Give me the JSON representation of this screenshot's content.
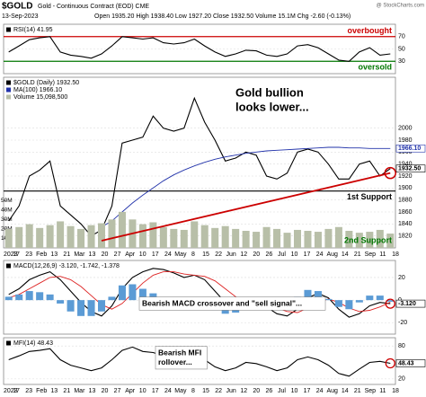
{
  "header": {
    "symbol": "$GOLD",
    "name": "Gold - Continuous Contract (EOD) CME",
    "date": "13-Sep-2023",
    "quote": "Open 1935.20  High 1938.40  Low 1927.20  Close 1932.50  Volume 15.1M  Chg -2.60 (-0.13%)",
    "credit": "@ StockCharts.com"
  },
  "x_labels": [
    "2023",
    "17",
    "23",
    "Feb",
    "13",
    "21",
    "Mar",
    "13",
    "20",
    "27",
    "Apr",
    "10",
    "17",
    "24",
    "May",
    "8",
    "15",
    "22",
    "Jun",
    "12",
    "20",
    "26",
    "Jul",
    "10",
    "17",
    "24",
    "Aug",
    "14",
    "21",
    "Sep",
    "11",
    "18"
  ],
  "chart_data": [
    {
      "type": "line",
      "series": [
        {
          "name": "RSI(14) 41.95",
          "color": "#000000",
          "values": [
            45,
            55,
            65,
            68,
            70,
            45,
            40,
            38,
            35,
            42,
            55,
            70,
            68,
            66,
            68,
            60,
            58,
            60,
            66,
            55,
            45,
            38,
            42,
            48,
            47,
            40,
            38,
            42,
            55,
            57,
            52,
            42,
            32,
            30,
            45,
            52,
            40,
            41.95
          ]
        }
      ],
      "ylim": [
        10,
        90
      ],
      "yticks": [
        30,
        50,
        70
      ],
      "grid": true,
      "levels": [
        {
          "value": 70,
          "label": "overbought",
          "color": "#cc0000"
        },
        {
          "value": 30,
          "label": "oversold",
          "color": "#007700"
        }
      ]
    },
    {
      "type": "line",
      "series": [
        {
          "name": "$GOLD (Daily) 1932.50",
          "color": "#000000",
          "values": [
            1845,
            1870,
            1920,
            1930,
            1945,
            1870,
            1855,
            1840,
            1820,
            1830,
            1870,
            1975,
            1980,
            1985,
            2020,
            2000,
            1995,
            2000,
            2050,
            2010,
            1980,
            1945,
            1950,
            1960,
            1955,
            1920,
            1915,
            1925,
            1960,
            1965,
            1960,
            1940,
            1915,
            1915,
            1940,
            1945,
            1920,
            1932.5
          ]
        },
        {
          "name": "MA(100) 1966.10",
          "color": "#2233aa",
          "values": [
            null,
            null,
            null,
            null,
            null,
            null,
            null,
            null,
            null,
            1835,
            1845,
            1860,
            1875,
            1888,
            1900,
            1912,
            1922,
            1930,
            1937,
            1943,
            1948,
            1952,
            1955,
            1958,
            1960,
            1962,
            1963,
            1964,
            1965,
            1966,
            1967,
            1968,
            1968,
            1967,
            1967,
            1966,
            1966,
            1966.1
          ]
        },
        {
          "name": "Volume 15,098,500",
          "color": "#b8bfa8",
          "style": "bar",
          "axis": "y2",
          "values": [
            20000000,
            22000000,
            25000000,
            21000000,
            24000000,
            28000000,
            23000000,
            20000000,
            24000000,
            26000000,
            30000000,
            38000000,
            30000000,
            25000000,
            27000000,
            22000000,
            20000000,
            19000000,
            28000000,
            24000000,
            21000000,
            23000000,
            20000000,
            18000000,
            17000000,
            22000000,
            20000000,
            16000000,
            19000000,
            18000000,
            17000000,
            20000000,
            22000000,
            18000000,
            16000000,
            17000000,
            19000000,
            15098500
          ]
        }
      ],
      "ylim": [
        1800,
        2085
      ],
      "yticks": [
        1820,
        1840,
        1860,
        1880,
        1900,
        1920,
        1940,
        1960,
        1980,
        2000
      ],
      "grid": true,
      "y2lim": [
        0,
        180000000
      ],
      "y2ticks": [
        {
          "value": 10000000,
          "label": "10M"
        },
        {
          "value": 20000000,
          "label": "20M"
        },
        {
          "value": 30000000,
          "label": "30M"
        },
        {
          "value": 40000000,
          "label": "40M"
        },
        {
          "value": 50000000,
          "label": "50M"
        }
      ],
      "markers": [
        {
          "value": 1966.1,
          "label": "1966.10",
          "color": "#2233aa"
        },
        {
          "value": 1932.5,
          "label": "1932.50",
          "color": "#000000"
        }
      ],
      "levels": [
        {
          "value": 1895,
          "label": "1st Support",
          "color": "#000000"
        }
      ],
      "trendlines": [
        {
          "label": "2nd Support",
          "color": "#cc0000",
          "points": [
            [
              9,
              1812
            ],
            [
              37,
              1925
            ]
          ]
        }
      ],
      "annotations": [
        {
          "lines": [
            "Gold bullion",
            "looks lower..."
          ]
        }
      ]
    },
    {
      "type": "line",
      "series": [
        {
          "name": "MACD(12,26,9) -3.120, -1.742, -1.378",
          "color": "#000000",
          "values": [
            5,
            10,
            18,
            22,
            25,
            18,
            8,
            -2,
            -10,
            -14,
            -5,
            10,
            20,
            25,
            28,
            27,
            24,
            20,
            22,
            18,
            8,
            -2,
            -8,
            -5,
            -2,
            -6,
            -12,
            -14,
            -8,
            2,
            6,
            2,
            -8,
            -15,
            -12,
            -5,
            -2,
            -3.12
          ]
        },
        {
          "color": "#dd2222",
          "values": [
            2,
            5,
            10,
            15,
            20,
            21,
            18,
            12,
            4,
            -4,
            -8,
            -3,
            6,
            15,
            22,
            25,
            25,
            23,
            22,
            21,
            17,
            10,
            3,
            -2,
            -3,
            -4,
            -7,
            -10,
            -11,
            -7,
            -2,
            1,
            -2,
            -7,
            -10,
            -9,
            -6,
            -1.742
          ]
        },
        {
          "color": "#5b9bd5",
          "style": "bar",
          "values": [
            3,
            5,
            8,
            7,
            5,
            -3,
            -10,
            -14,
            -14,
            -10,
            3,
            13,
            14,
            10,
            6,
            2,
            -1,
            -3,
            0,
            -3,
            -9,
            -12,
            -11,
            -3,
            1,
            -2,
            -5,
            -4,
            3,
            9,
            8,
            1,
            -6,
            -8,
            -2,
            4,
            4,
            -1.378
          ]
        }
      ],
      "ylim": [
        -30,
        35
      ],
      "yticks": [
        -20,
        0,
        20
      ],
      "grid": true,
      "markers": [
        {
          "value": -3.12,
          "label": "-3.120",
          "color": "#000000"
        }
      ],
      "annotations": [
        {
          "lines": [
            "Bearish MACD crossover and \"sell signal\"..."
          ]
        }
      ]
    },
    {
      "type": "line",
      "series": [
        {
          "name": "MFI(14) 48.43",
          "color": "#000000",
          "values": [
            55,
            62,
            70,
            72,
            75,
            55,
            45,
            40,
            35,
            40,
            55,
            72,
            78,
            70,
            68,
            62,
            58,
            60,
            65,
            55,
            42,
            35,
            40,
            50,
            48,
            42,
            35,
            40,
            55,
            60,
            55,
            45,
            30,
            25,
            38,
            50,
            52,
            48.43
          ]
        }
      ],
      "ylim": [
        10,
        95
      ],
      "yticks": [
        20,
        80
      ],
      "grid": true,
      "markers": [
        {
          "value": 48.43,
          "label": "48.43",
          "color": "#000000"
        }
      ],
      "annotations": [
        {
          "lines": [
            "Bearish MFI",
            "rollover..."
          ]
        }
      ]
    }
  ]
}
